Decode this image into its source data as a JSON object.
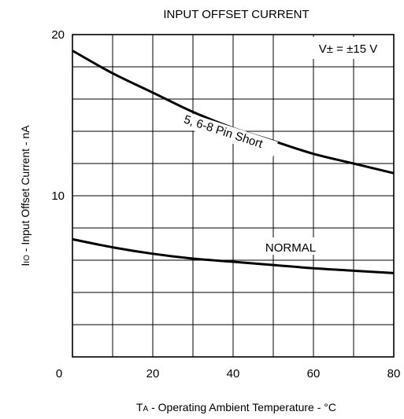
{
  "chart_data": {
    "type": "line",
    "title": "INPUT OFFSET CURRENT",
    "xlabel": {
      "main": "T",
      "sub": "A",
      "rest": " - Operating Ambient Temperature - °C"
    },
    "ylabel": {
      "main": "I",
      "sub": "IO",
      "rest": " - Input Offset Current - nA"
    },
    "xlim": [
      0,
      80
    ],
    "ylim": [
      0,
      20
    ],
    "xticks": [
      0,
      20,
      40,
      60,
      80
    ],
    "yticks_labeled": [
      0,
      10,
      20
    ],
    "xgrid": [
      10,
      20,
      30,
      40,
      50,
      60,
      70
    ],
    "ygrid": [
      2,
      4,
      6,
      8,
      10,
      12,
      14,
      16,
      18
    ],
    "condition": "V± = ±15 V",
    "series": [
      {
        "name": "5, 6-8 Pin Short",
        "x": [
          0,
          10,
          20,
          30,
          40,
          50,
          60,
          70,
          80
        ],
        "y": [
          19.0,
          17.6,
          16.4,
          15.2,
          14.2,
          13.4,
          12.6,
          12.0,
          11.4
        ]
      },
      {
        "name": "NORMAL",
        "x": [
          0,
          10,
          20,
          30,
          40,
          50,
          60,
          70,
          80
        ],
        "y": [
          7.3,
          6.8,
          6.4,
          6.1,
          5.9,
          5.7,
          5.5,
          5.35,
          5.2
        ]
      }
    ]
  }
}
